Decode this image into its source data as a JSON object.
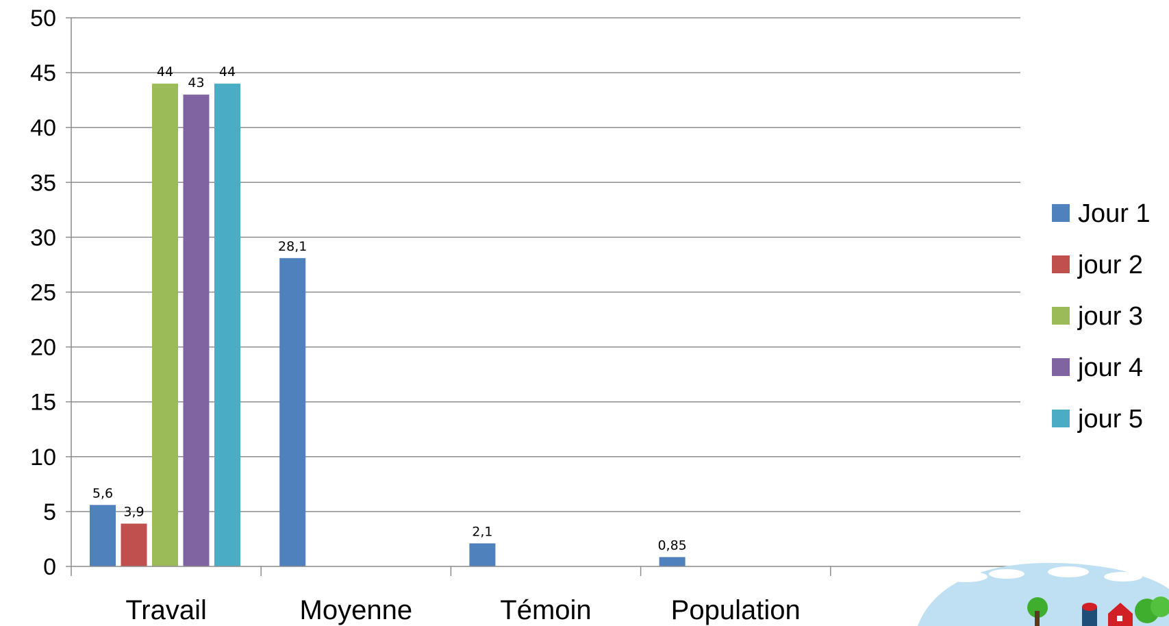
{
  "chart_data": {
    "type": "bar",
    "categories": [
      "Travail",
      "Moyenne",
      "Témoin",
      "Population",
      ""
    ],
    "series": [
      {
        "name": "Jour 1",
        "color": "#4F81BD",
        "values": [
          5.6,
          28.1,
          2.1,
          0.85,
          null
        ],
        "labels": [
          "5,6",
          "28,1",
          "2,1",
          "0,85",
          ""
        ]
      },
      {
        "name": "jour 2",
        "color": "#C0504D",
        "values": [
          3.9,
          null,
          null,
          null,
          null
        ],
        "labels": [
          "3,9",
          "",
          "",
          "",
          ""
        ]
      },
      {
        "name": "jour 3",
        "color": "#9BBB59",
        "values": [
          44,
          null,
          null,
          null,
          null
        ],
        "labels": [
          "44",
          "",
          "",
          "",
          ""
        ]
      },
      {
        "name": "jour 4",
        "color": "#8064A2",
        "values": [
          43,
          null,
          null,
          null,
          null
        ],
        "labels": [
          "43",
          "",
          "",
          "",
          ""
        ]
      },
      {
        "name": "jour 5",
        "color": "#4BACC6",
        "values": [
          44,
          null,
          null,
          null,
          null
        ],
        "labels": [
          "44",
          "",
          "",
          "",
          ""
        ]
      }
    ],
    "ylim": [
      0,
      50
    ],
    "yticks": [
      0,
      5,
      10,
      15,
      20,
      25,
      30,
      35,
      40,
      45,
      50
    ],
    "title": "",
    "xlabel": "",
    "ylabel": "",
    "grid": true,
    "legend_position": "right"
  },
  "decoration": {
    "icon": "farm-landscape-icon",
    "sky_color": "#BFE0F2",
    "tree_color": "#3FAE2E",
    "barn_color": "#D21F26",
    "silo_color": "#1F4E79"
  }
}
